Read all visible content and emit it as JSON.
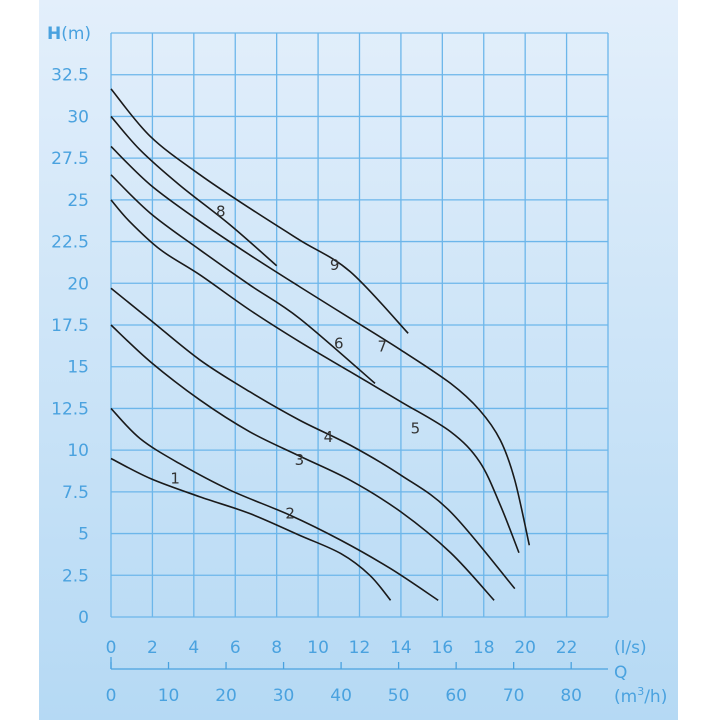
{
  "chart_data": {
    "type": "line",
    "ylabel_bold": "H",
    "ylabel_unit": "(m)",
    "xlabel_primary_unit": "(l/s)",
    "xlabel_secondary": "Q",
    "xlabel_secondary_unit_pre": "(m",
    "xlabel_secondary_unit_sup": "3",
    "xlabel_secondary_unit_post": "/h)",
    "xlim": [
      0,
      24
    ],
    "ylim": [
      0,
      35
    ],
    "grid": true,
    "y_ticks": [
      "0",
      "2.5",
      "5",
      "7.5",
      "10",
      "12.5",
      "15",
      "17.5",
      "20",
      "22.5",
      "25",
      "27.5",
      "30",
      "32.5"
    ],
    "x_ticks": [
      "0",
      "2",
      "4",
      "6",
      "8",
      "10",
      "12",
      "14",
      "16",
      "18",
      "20",
      "22"
    ],
    "x2_ticks": [
      "0",
      "10",
      "20",
      "30",
      "40",
      "50",
      "60",
      "70",
      "80"
    ],
    "colors": {
      "axis_text": "#4aa2df",
      "grid": "#6cb6ea",
      "curve": "#1a1a1a"
    },
    "series": [
      {
        "name": "1",
        "label_at": [
          3.1,
          8.3
        ],
        "points": [
          [
            0,
            9.5
          ],
          [
            1.9,
            8.3
          ],
          [
            4.3,
            7.2
          ],
          [
            6.7,
            6.2
          ],
          [
            9.1,
            4.9
          ],
          [
            11.1,
            3.8
          ],
          [
            12.5,
            2.5
          ],
          [
            13.5,
            1.0
          ]
        ]
      },
      {
        "name": "2",
        "label_at": [
          8.65,
          6.2
        ],
        "points": [
          [
            0,
            12.5
          ],
          [
            1.4,
            10.7
          ],
          [
            3.3,
            9.2
          ],
          [
            5.75,
            7.6
          ],
          [
            8.65,
            6.1
          ],
          [
            11.1,
            4.6
          ],
          [
            13.5,
            2.9
          ],
          [
            15.8,
            1.0
          ]
        ]
      },
      {
        "name": "3",
        "label_at": [
          9.1,
          9.4
        ],
        "points": [
          [
            0,
            17.5
          ],
          [
            1.9,
            15.3
          ],
          [
            4.3,
            13.0
          ],
          [
            6.7,
            11.1
          ],
          [
            9.1,
            9.65
          ],
          [
            11.55,
            8.2
          ],
          [
            14.0,
            6.3
          ],
          [
            16.4,
            3.85
          ],
          [
            18.5,
            1.0
          ]
        ]
      },
      {
        "name": "4",
        "label_at": [
          10.5,
          10.8
        ],
        "points": [
          [
            0,
            19.7
          ],
          [
            1.9,
            17.8
          ],
          [
            4.3,
            15.4
          ],
          [
            6.7,
            13.5
          ],
          [
            9.1,
            11.8
          ],
          [
            11.55,
            10.3
          ],
          [
            14.0,
            8.5
          ],
          [
            16.4,
            6.3
          ],
          [
            19.5,
            1.7
          ]
        ]
      },
      {
        "name": "5",
        "label_at": [
          14.7,
          11.3
        ],
        "points": [
          [
            0,
            25
          ],
          [
            0.9,
            23.7
          ],
          [
            2.4,
            22
          ],
          [
            4.3,
            20.5
          ],
          [
            6.7,
            18.4
          ],
          [
            9.1,
            16.5
          ],
          [
            11.55,
            14.7
          ],
          [
            14.0,
            12.9
          ],
          [
            16.4,
            11.1
          ],
          [
            17.8,
            9.3
          ],
          [
            18.8,
            6.7
          ],
          [
            19.7,
            3.85
          ]
        ]
      },
      {
        "name": "6",
        "label_at": [
          11.0,
          16.4
        ],
        "points": [
          [
            0,
            26.5
          ],
          [
            1.9,
            24.2
          ],
          [
            4.3,
            22
          ],
          [
            6.7,
            19.9
          ],
          [
            9.1,
            17.9
          ],
          [
            12.75,
            14.0
          ]
        ]
      },
      {
        "name": "7",
        "label_at": [
          13.1,
          16.2
        ],
        "points": [
          [
            0,
            28.2
          ],
          [
            1.9,
            25.9
          ],
          [
            4.3,
            23.7
          ],
          [
            6.7,
            21.7
          ],
          [
            9.1,
            19.8
          ],
          [
            11.55,
            17.9
          ],
          [
            14.0,
            16.0
          ],
          [
            16.4,
            14.0
          ],
          [
            17.8,
            12.4
          ],
          [
            18.8,
            10.6
          ],
          [
            19.5,
            8.2
          ],
          [
            20.2,
            4.3
          ]
        ]
      },
      {
        "name": "8",
        "label_at": [
          5.3,
          24.3
        ],
        "points": [
          [
            0,
            30
          ],
          [
            1.4,
            28
          ],
          [
            3.3,
            25.9
          ],
          [
            5.75,
            23.5
          ],
          [
            8.0,
            21.05
          ]
        ]
      },
      {
        "name": "9",
        "label_at": [
          10.8,
          21.1
        ],
        "points": [
          [
            0,
            31.65
          ],
          [
            1.9,
            28.8
          ],
          [
            4.3,
            26.5
          ],
          [
            6.7,
            24.5
          ],
          [
            9.1,
            22.6
          ],
          [
            11.55,
            20.7
          ],
          [
            14.35,
            17.0
          ]
        ]
      }
    ]
  }
}
